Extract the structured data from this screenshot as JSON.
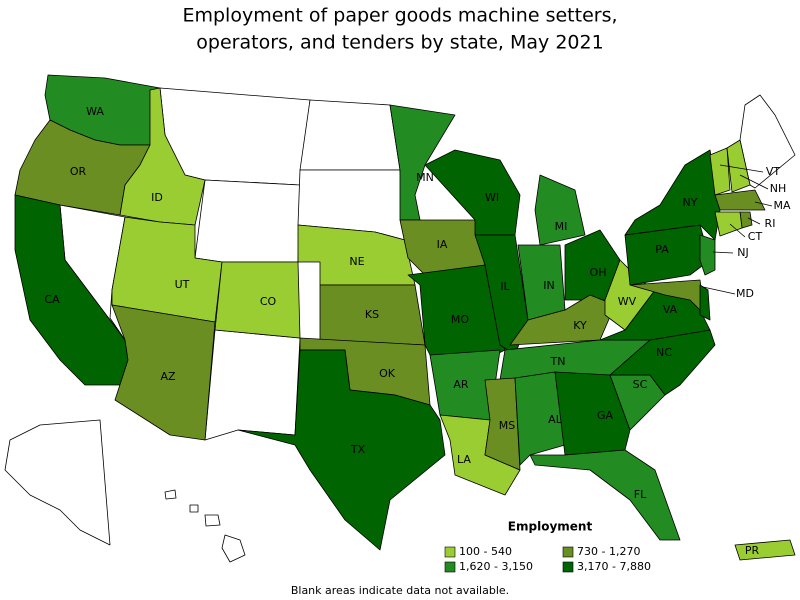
{
  "title": [
    "Employment of paper goods machine setters,",
    "operators, and tenders by state, May 2021"
  ],
  "legend": {
    "title": "Employment",
    "items": [
      {
        "label": "100 - 540",
        "color": "#9acd32"
      },
      {
        "label": "730 - 1,270",
        "color": "#6b8e23"
      },
      {
        "label": "1,620 - 3,150",
        "color": "#228b22"
      },
      {
        "label": "3,170 - 7,880",
        "color": "#006400"
      }
    ]
  },
  "states": [
    {
      "label": "WA",
      "class": 2
    },
    {
      "label": "OR",
      "class": 1
    },
    {
      "label": "CA",
      "class": 3
    },
    {
      "label": "ID",
      "class": 0
    },
    {
      "label": "UT",
      "class": 0
    },
    {
      "label": "CO",
      "class": 0
    },
    {
      "label": "AZ",
      "class": 1
    },
    {
      "label": "NE",
      "class": 0
    },
    {
      "label": "KS",
      "class": 1
    },
    {
      "label": "OK",
      "class": 1
    },
    {
      "label": "TX",
      "class": 3
    },
    {
      "label": "MN",
      "class": 2
    },
    {
      "label": "IA",
      "class": 1
    },
    {
      "label": "MO",
      "class": 3
    },
    {
      "label": "AR",
      "class": 2
    },
    {
      "label": "LA",
      "class": 0
    },
    {
      "label": "WI",
      "class": 3
    },
    {
      "label": "IL",
      "class": 3
    },
    {
      "label": "MI",
      "class": 2
    },
    {
      "label": "IN",
      "class": 2
    },
    {
      "label": "OH",
      "class": 3
    },
    {
      "label": "KY",
      "class": 1
    },
    {
      "label": "TN",
      "class": 2
    },
    {
      "label": "MS",
      "class": 1
    },
    {
      "label": "AL",
      "class": 2
    },
    {
      "label": "GA",
      "class": 3
    },
    {
      "label": "FL",
      "class": 2
    },
    {
      "label": "SC",
      "class": 2
    },
    {
      "label": "NC",
      "class": 3
    },
    {
      "label": "VA",
      "class": 3
    },
    {
      "label": "WV",
      "class": 0
    },
    {
      "label": "PA",
      "class": 3
    },
    {
      "label": "NY",
      "class": 3
    },
    {
      "label": "VT",
      "class": 0
    },
    {
      "label": "NH",
      "class": 0
    },
    {
      "label": "MA",
      "class": 1
    },
    {
      "label": "RI",
      "class": 1
    },
    {
      "label": "CT",
      "class": 0
    },
    {
      "label": "NJ",
      "class": 2
    },
    {
      "label": "MD",
      "class": 1
    },
    {
      "label": "PR",
      "class": 0
    },
    {
      "class": 3
    }
  ],
  "footnote": "Blank areas indicate data not available."
}
